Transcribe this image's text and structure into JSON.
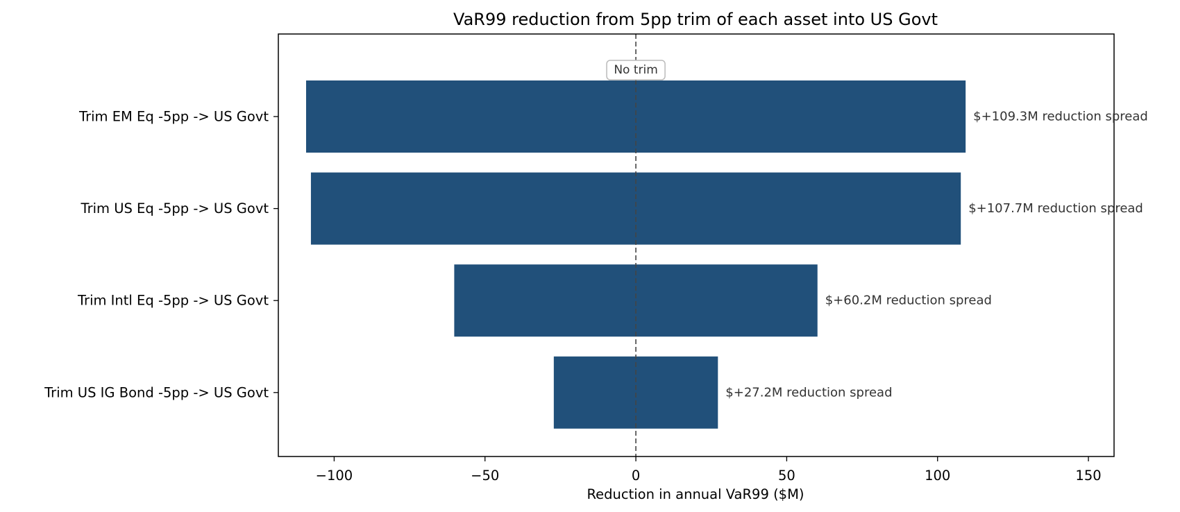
{
  "chart_data": {
    "type": "bar",
    "orientation": "horizontal",
    "title": "VaR99 reduction from 5pp trim of each asset into US Govt",
    "xlabel": "Reduction in annual VaR99  ($M)",
    "ylabel": "",
    "categories": [
      "Trim EM Eq -5pp -> US Govt",
      "Trim US Eq -5pp -> US Govt",
      "Trim Intl Eq -5pp -> US Govt",
      "Trim US IG Bond -5pp -> US Govt"
    ],
    "ranges": [
      [
        -109.3,
        109.3
      ],
      [
        -107.7,
        107.7
      ],
      [
        -60.2,
        60.2
      ],
      [
        -27.2,
        27.2
      ]
    ],
    "data_labels": [
      "$+109.3M reduction spread",
      "$+107.7M reduction spread",
      "$+60.2M reduction spread",
      "$+27.2M reduction spread"
    ],
    "xlim": [
      -118.5,
      158.5
    ],
    "xticks": [
      -100,
      -50,
      0,
      50,
      100,
      150
    ],
    "xtick_labels": [
      "−100",
      "−50",
      "0",
      "50",
      "100",
      "150"
    ],
    "reference_line": {
      "x": 0,
      "style": "dashed",
      "label": "No trim"
    },
    "bar_color": "#21507a",
    "grid": false
  }
}
